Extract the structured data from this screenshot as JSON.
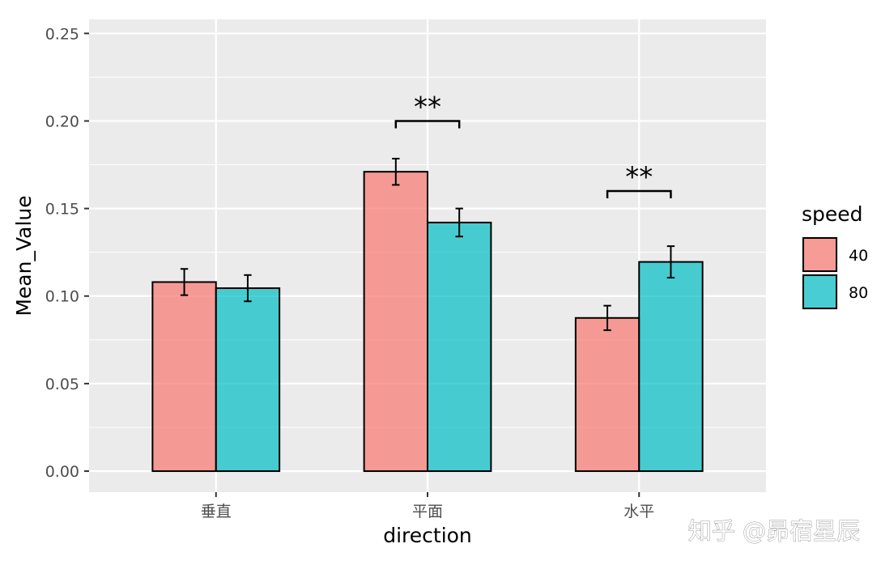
{
  "chart_data": {
    "type": "bar",
    "xlabel": "direction",
    "ylabel": "Mean_Value",
    "categories": [
      "垂直",
      "平面",
      "水平"
    ],
    "ylim": [
      -0.012,
      0.258
    ],
    "yticks": [
      "0.00",
      "0.05",
      "0.10",
      "0.15",
      "0.20",
      "0.25"
    ],
    "grid": true,
    "legend": {
      "title": "speed",
      "position": "right"
    },
    "series": [
      {
        "name": "40",
        "color": "#F8766D",
        "values": [
          0.108,
          0.171,
          0.0875
        ],
        "errors": [
          0.0075,
          0.0075,
          0.007
        ]
      },
      {
        "name": "80",
        "color": "#00BFC4",
        "values": [
          0.1045,
          0.142,
          0.1195
        ],
        "errors": [
          0.0075,
          0.008,
          0.009
        ]
      }
    ],
    "annotations": [
      {
        "category": "平面",
        "label": "**",
        "y": 0.2
      },
      {
        "category": "水平",
        "label": "**",
        "y": 0.16
      }
    ]
  },
  "watermark": "知乎 @昴宿星辰"
}
